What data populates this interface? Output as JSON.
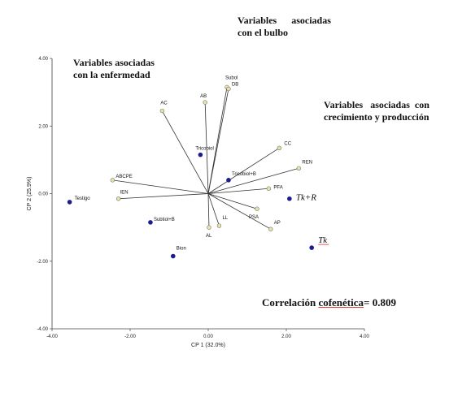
{
  "annotations": {
    "bulbo_line1": "Variables      asociadas",
    "bulbo_line2": "con el bulbo",
    "enfermedad_line1": "Variables asociadas",
    "enfermedad_line2": "con la enfermedad",
    "crecimiento_line1": "Variables   asociadas  con",
    "crecimiento_line2": "crecimiento y producción",
    "correlacion_label": "Correlación",
    "correlacion_word": "cofenética",
    "correlacion_value": "= 0.809"
  },
  "chart_data": {
    "type": "biplot",
    "xlabel": "CP 1 (32.0%)",
    "ylabel": "CP 2 (25.9%)",
    "xlim": [
      -4,
      4
    ],
    "ylim": [
      -4,
      4
    ],
    "xticks": [
      "-4.00",
      "-2.00",
      "0.00",
      "2.00",
      "4.00"
    ],
    "yticks": [
      "4.00",
      "2.00",
      "0.00",
      "-2.00",
      "-4.00"
    ],
    "colors": {
      "vector": "#333333",
      "variable_marker": "#e8e4a8",
      "treatment_marker": "#1c1c8c"
    },
    "variables": [
      {
        "label": "Subol",
        "x": 0.48,
        "y": 3.15
      },
      {
        "label": "DB",
        "x": 0.52,
        "y": 3.1
      },
      {
        "label": "AB",
        "x": -0.08,
        "y": 2.7
      },
      {
        "label": "AC",
        "x": -1.18,
        "y": 2.45
      },
      {
        "label": "CC",
        "x": 1.82,
        "y": 1.35
      },
      {
        "label": "REN",
        "x": 2.32,
        "y": 0.75
      },
      {
        "label": "PFA",
        "x": 1.55,
        "y": 0.15
      },
      {
        "label": "PSA",
        "x": 1.25,
        "y": -0.45
      },
      {
        "label": "AP",
        "x": 1.6,
        "y": -1.05
      },
      {
        "label": "LL",
        "x": 0.28,
        "y": -0.95
      },
      {
        "label": "AL",
        "x": 0.02,
        "y": -1.0
      },
      {
        "label": "ABCPE",
        "x": -2.45,
        "y": 0.4
      },
      {
        "label": "IEN",
        "x": -2.3,
        "y": -0.15
      }
    ],
    "treatments": [
      {
        "label": "Tricobiol",
        "x": -0.2,
        "y": 1.15
      },
      {
        "label": "Tricobiol+B",
        "x": 0.52,
        "y": 0.4
      },
      {
        "label": "Testigo",
        "x": -3.55,
        "y": -0.25
      },
      {
        "label": "Subtiol+B",
        "x": -1.48,
        "y": -0.85
      },
      {
        "label": "Bion",
        "x": -0.9,
        "y": -1.85
      },
      {
        "label": "Tk+R",
        "x": 2.08,
        "y": -0.15
      },
      {
        "label": "Tk",
        "x": 2.65,
        "y": -1.6
      }
    ]
  }
}
